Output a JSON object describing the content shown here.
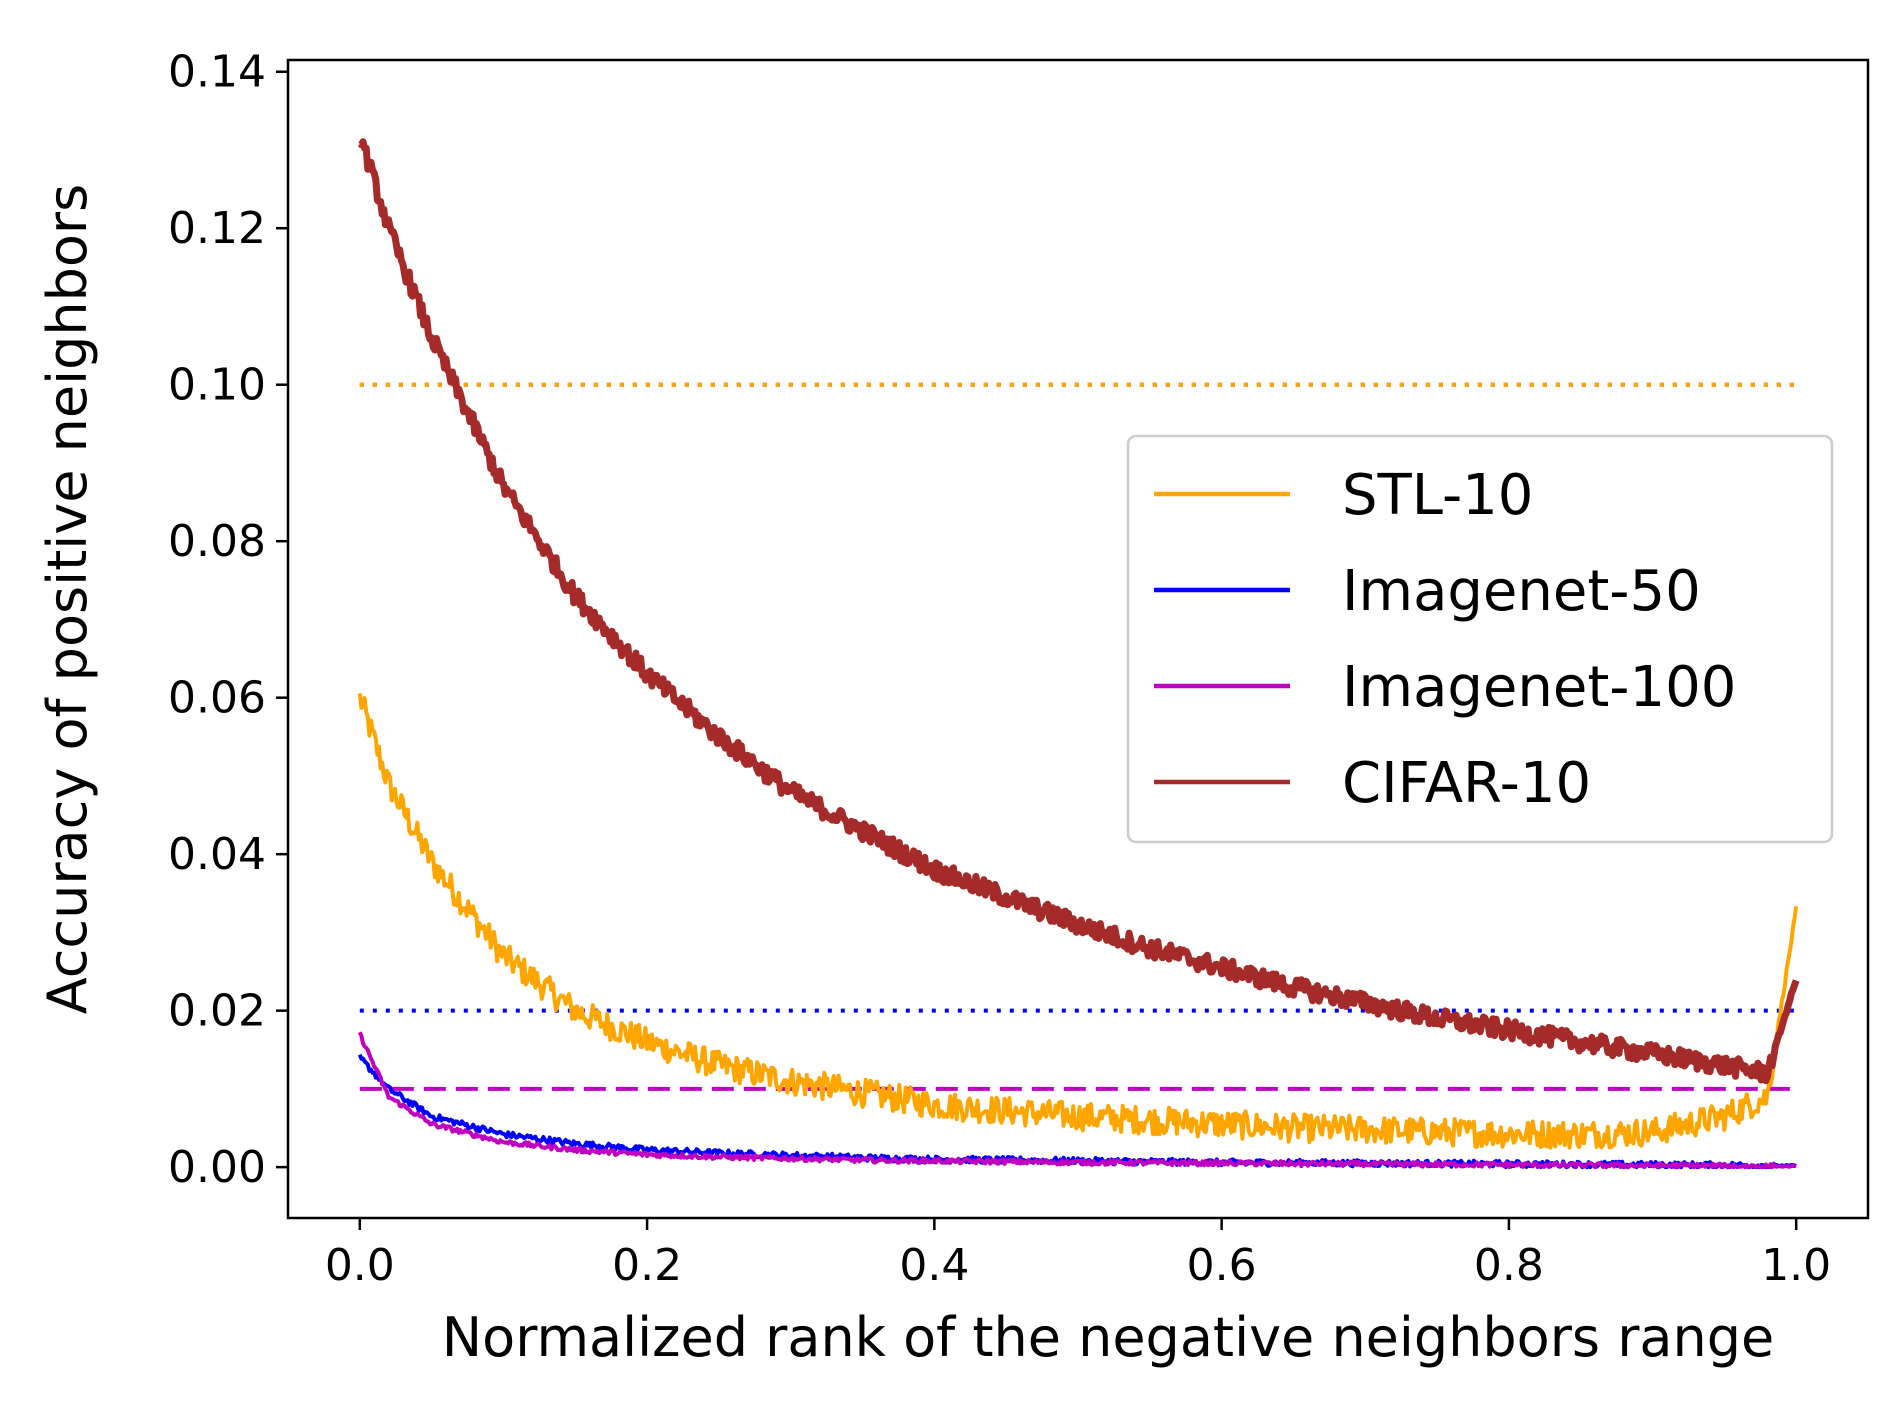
{
  "chart_data": {
    "type": "line",
    "xlabel": "Normalized rank of the negative neighbors range",
    "ylabel": "Accuracy of positive neighbors",
    "xlim": [
      -0.05,
      1.05
    ],
    "ylim": [
      -0.0065,
      0.1415
    ],
    "xticks": [
      0.0,
      0.2,
      0.4,
      0.6,
      0.8,
      1.0
    ],
    "xtick_labels": [
      "0.0",
      "0.2",
      "0.4",
      "0.6",
      "0.8",
      "1.0"
    ],
    "yticks": [
      0.0,
      0.02,
      0.04,
      0.06,
      0.08,
      0.1,
      0.12,
      0.14
    ],
    "ytick_labels": [
      "0.00",
      "0.02",
      "0.04",
      "0.06",
      "0.08",
      "0.10",
      "0.12",
      "0.14"
    ],
    "grid": false,
    "legend_position": "center-right",
    "x": [
      0.0,
      0.02,
      0.05,
      0.1,
      0.15,
      0.2,
      0.25,
      0.3,
      0.35,
      0.4,
      0.45,
      0.5,
      0.55,
      0.6,
      0.65,
      0.7,
      0.75,
      0.8,
      0.85,
      0.9,
      0.95,
      0.98,
      1.0
    ],
    "series": [
      {
        "name": "STL-10",
        "color": "#FFA500",
        "values": [
          0.06,
          0.049,
          0.039,
          0.027,
          0.02,
          0.016,
          0.013,
          0.011,
          0.0095,
          0.008,
          0.0072,
          0.0065,
          0.006,
          0.0055,
          0.005,
          0.0048,
          0.0045,
          0.0043,
          0.0042,
          0.0045,
          0.0065,
          0.009,
          0.033
        ],
        "noise": 0.0018
      },
      {
        "name": "Imagenet-50",
        "color": "#0000FF",
        "values": [
          0.014,
          0.01,
          0.0065,
          0.0042,
          0.003,
          0.0022,
          0.0018,
          0.0015,
          0.0012,
          0.001,
          0.0009,
          0.0008,
          0.0007,
          0.0006,
          0.00055,
          0.0005,
          0.00045,
          0.0004,
          0.00035,
          0.0003,
          0.00025,
          0.0002,
          0.0002
        ],
        "noise": 0.0004
      },
      {
        "name": "Imagenet-100",
        "color": "#BF00BF",
        "values": [
          0.017,
          0.009,
          0.0055,
          0.0032,
          0.0022,
          0.0016,
          0.0013,
          0.0011,
          0.0009,
          0.0008,
          0.0007,
          0.0006,
          0.00055,
          0.0005,
          0.00045,
          0.0004,
          0.00035,
          0.0003,
          0.00025,
          0.0002,
          0.00015,
          0.0001,
          0.0001
        ],
        "noise": 0.0003
      },
      {
        "name": "CIFAR-10",
        "color": "#A52A2A",
        "values": [
          0.132,
          0.12,
          0.106,
          0.087,
          0.073,
          0.063,
          0.055,
          0.048,
          0.043,
          0.038,
          0.0345,
          0.031,
          0.028,
          0.0255,
          0.023,
          0.021,
          0.019,
          0.0175,
          0.016,
          0.0145,
          0.013,
          0.012,
          0.024
        ],
        "noise": 0.0012
      }
    ],
    "reference_lines": [
      {
        "name": "CIFAR-10 chance",
        "y": 0.1,
        "color": "#A52A2A",
        "style": "dotted"
      },
      {
        "name": "STL-10 chance",
        "y": 0.1,
        "color": "#FFA500",
        "style": "dotted"
      },
      {
        "name": "Imagenet-50 chance",
        "y": 0.02,
        "color": "#0000FF",
        "style": "dotted"
      },
      {
        "name": "Imagenet-100 chance",
        "y": 0.01,
        "color": "#BF00BF",
        "style": "dashed"
      }
    ]
  }
}
